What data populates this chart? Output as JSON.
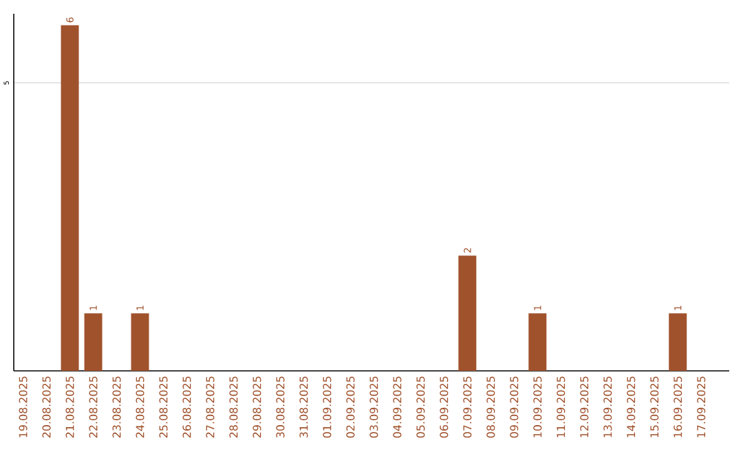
{
  "chart_data": {
    "type": "bar",
    "categories": [
      "19.08.2025",
      "20.08.2025",
      "21.08.2025",
      "22.08.2025",
      "23.08.2025",
      "24.08.2025",
      "25.08.2025",
      "26.08.2025",
      "27.08.2025",
      "28.08.2025",
      "29.08.2025",
      "30.08.2025",
      "31.08.2025",
      "01.09.2025",
      "02.09.2025",
      "03.09.2025",
      "04.09.2025",
      "05.09.2025",
      "06.09.2025",
      "07.09.2025",
      "08.09.2025",
      "09.09.2025",
      "10.09.2025",
      "11.09.2025",
      "12.09.2025",
      "13.09.2025",
      "14.09.2025",
      "15.09.2025",
      "16.09.2025",
      "17.09.2025"
    ],
    "values": [
      0,
      0,
      6,
      1,
      0,
      1,
      0,
      0,
      0,
      0,
      0,
      0,
      0,
      0,
      0,
      0,
      0,
      0,
      0,
      2,
      0,
      0,
      1,
      0,
      0,
      0,
      0,
      0,
      1,
      0
    ],
    "value_labels": [
      null,
      null,
      "6",
      "1",
      null,
      "1",
      null,
      null,
      null,
      null,
      null,
      null,
      null,
      null,
      null,
      null,
      null,
      null,
      null,
      "2",
      null,
      null,
      "1",
      null,
      null,
      null,
      null,
      null,
      "1",
      null
    ],
    "color": "#a0522d",
    "ylim": [
      0,
      6.2
    ],
    "yticks": [
      5
    ],
    "grid": "y"
  }
}
